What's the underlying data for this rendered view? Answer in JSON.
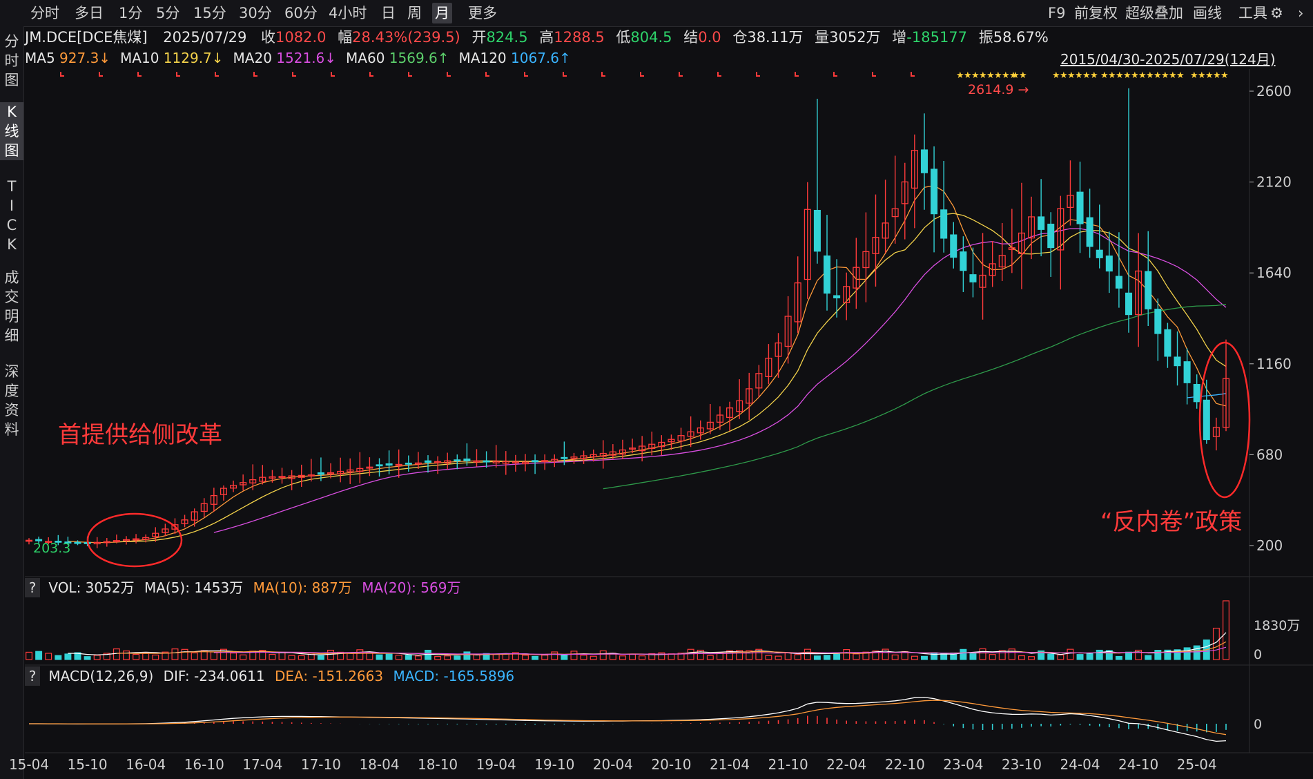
{
  "toolbar": {
    "timeframes": [
      "分时",
      "多日",
      "1分",
      "5分",
      "15分",
      "30分",
      "60分",
      "4小时",
      "日",
      "周",
      "月",
      "更多"
    ],
    "active_timeframe": "月",
    "tools": [
      "F9",
      "前复权",
      "超级叠加",
      "画线",
      "工具"
    ]
  },
  "sidebar": [
    "分时图",
    "K线图",
    "TICK",
    "成交明细",
    "深度资料"
  ],
  "quote": {
    "symbol": "JM.DCE[DCE焦煤]",
    "date": "2025/07/29",
    "close_label": "收",
    "close": "1082.0",
    "change_label": "幅",
    "change": "28.43%(239.5)",
    "open_label": "开",
    "open": "824.5",
    "high_label": "高",
    "high": "1288.5",
    "low_label": "低",
    "low": "804.5",
    "settle_label": "结",
    "settle": "0.0",
    "oi_label": "仓",
    "oi": "38.11万",
    "vol_label": "量",
    "vol": "3052万",
    "oichg_label": "增",
    "oichg": "-185177",
    "amp_label": "振",
    "amp": "58.67%"
  },
  "ma_legend": [
    {
      "name": "MA5",
      "value": "927.3↓",
      "color": "#ff9a3a"
    },
    {
      "name": "MA10",
      "value": "1129.7↓",
      "color": "#f2d14a"
    },
    {
      "name": "MA20",
      "value": "1521.6↓",
      "color": "#d84ee0"
    },
    {
      "name": "MA60",
      "value": "1569.6↑",
      "color": "#5ccf6b"
    },
    {
      "name": "MA120",
      "value": "1067.6↑",
      "color": "#3ab4ff"
    }
  ],
  "date_range": "2015/04/30-2025/07/29(124月)",
  "annotations": {
    "left": "首提供给侧改革",
    "right": "“反内卷”政策",
    "high_label": "2614.9",
    "low_label": "203.3"
  },
  "vol_panel": {
    "label": "VOL: 3052万",
    "ma5": "MA(5): 1453万",
    "ma10": "MA(10): 887万",
    "ma20": "MA(20): 569万",
    "ticks": [
      "1830万",
      "0"
    ]
  },
  "macd_panel": {
    "label": "MACD(12,26,9)",
    "dif": "DIF: -234.0611",
    "dea": "DEA: -151.2663",
    "macd": "MACD: -165.5896",
    "tick": "0"
  },
  "chart_data": {
    "type": "candlestick",
    "y_ticks": [
      2600,
      2120,
      1640,
      1160,
      680,
      200
    ],
    "ylim": [
      200,
      2600
    ],
    "x_ticks": [
      "15-04",
      "15-10",
      "16-04",
      "16-10",
      "17-04",
      "17-10",
      "18-04",
      "18-10",
      "19-04",
      "19-10",
      "20-04",
      "20-10",
      "21-04",
      "21-10",
      "22-04",
      "22-10",
      "23-04",
      "23-10",
      "24-04",
      "24-10",
      "25-04"
    ],
    "high": 2614.9,
    "low": 203.3,
    "last": {
      "open": 824.5,
      "high": 1288.5,
      "low": 804.5,
      "close": 1082.0
    }
  },
  "colors": {
    "up": "#ff3b3b",
    "down": "#32d2d6",
    "grid": "#2a2a2e",
    "axis": "#bdbdbd"
  }
}
